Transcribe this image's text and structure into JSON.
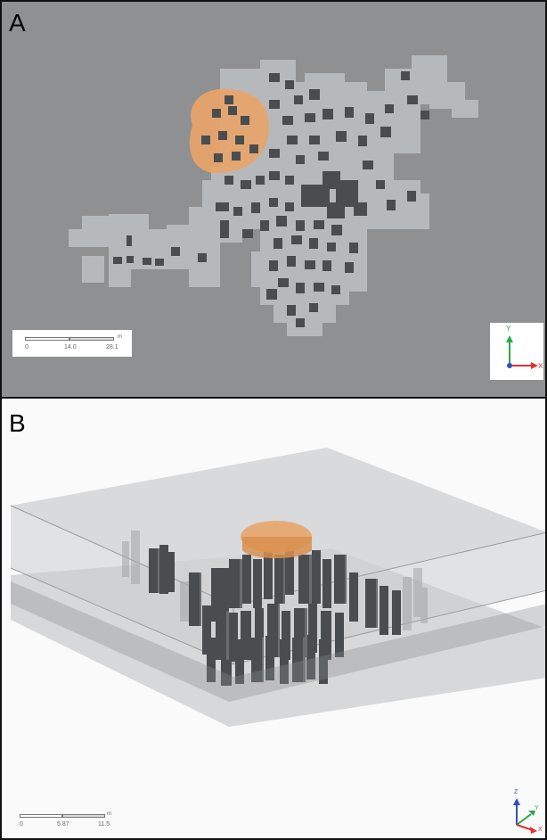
{
  "panels": [
    {
      "label": "A",
      "view": "top"
    },
    {
      "label": "B",
      "view": "perspective"
    }
  ],
  "scale_a": {
    "ticks": [
      "0",
      "14.0",
      "28.1"
    ],
    "unit": "m"
  },
  "scale_b": {
    "ticks": [
      "0",
      "5.87",
      "11.5"
    ],
    "unit": "m"
  },
  "axes_a": {
    "y": "Y",
    "x": "X"
  },
  "axes_b": {
    "z": "Z",
    "y": "Y",
    "x": "X"
  },
  "colors": {
    "ground": "#8e9091",
    "walkway": "#b6b9bb",
    "building": "#4a4d50",
    "highlight": "#e8a46a",
    "slab": "#9ea1a3"
  }
}
